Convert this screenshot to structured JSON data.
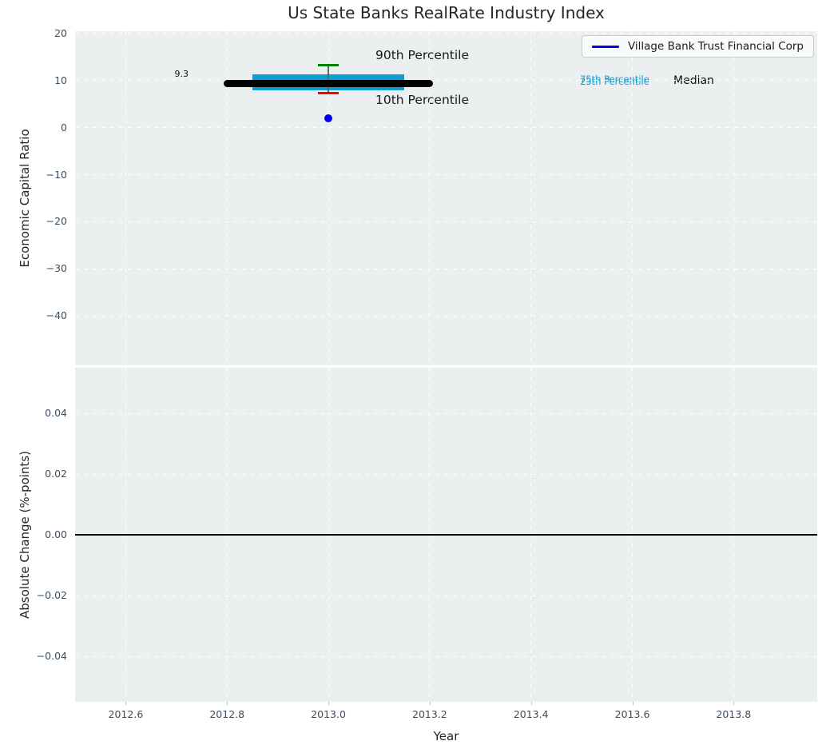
{
  "title": "Us State Banks RealRate Industry Index",
  "colors": {
    "plot_bg": "#eceff0",
    "grid": "#ffffff",
    "box_fill": "#0d9fd4",
    "median_line": "#000000",
    "p90_cap": "#008000",
    "p10_cap": "#ff0000",
    "whisker": "#666666",
    "company_point": "#0000ee",
    "legend_line": "#0000ee",
    "zero_line": "#000000",
    "tick_label": "#3b4d60",
    "text": "#262626",
    "percentile_text": "#17a1d7"
  },
  "legend": {
    "series_label": "Village Bank Trust Financial Corp"
  },
  "chart_data": [
    {
      "type": "box",
      "title": "Us State Banks RealRate Industry Index",
      "ylabel": "Economic Capital Ratio",
      "ylim": [
        -50.5,
        20.5
      ],
      "yticks": [
        20,
        10,
        0,
        -10,
        -20,
        -30,
        -40
      ],
      "yticklabels": [
        "20",
        "10",
        "0",
        "−10",
        "−20",
        "−30",
        "−40"
      ],
      "xlim": [
        2012.5,
        2013.965
      ],
      "grid": "white dashed, on",
      "legend_position": "upper right",
      "legend_entries": [
        "Village Bank Trust Financial Corp"
      ],
      "x_center": 2013.0,
      "box": {
        "p90": 13.2,
        "p75": 11.3,
        "median": 9.3,
        "p25": 8.0,
        "p10": 7.3,
        "company_value": 2.0,
        "box_halfwidth_years": 0.15,
        "median_halfwidth_years": 0.2,
        "cap_halfwidth_years": 0.02
      },
      "annotations": {
        "median_value": "9.3",
        "p90_label": "90th Percentile",
        "p10_label": "10th Percentile",
        "p75_label": "75th Percentile",
        "p25_label": "25th Percentile",
        "median_label": "Median"
      }
    },
    {
      "type": "line",
      "ylabel": "Absolute Change (%-points)",
      "xlabel": "Year",
      "ylim": [
        -0.055,
        0.055
      ],
      "yticks": [
        0.04,
        0.02,
        0.0,
        -0.02,
        -0.04
      ],
      "yticklabels": [
        "0.04",
        "0.02",
        "0.00",
        "−0.02",
        "−0.04"
      ],
      "xlim": [
        2012.5,
        2013.965
      ],
      "xticks": [
        2012.6,
        2012.8,
        2013.0,
        2013.2,
        2013.4,
        2013.6,
        2013.8
      ],
      "xticklabels": [
        "2012.6",
        "2012.8",
        "2013.0",
        "2013.2",
        "2013.4",
        "2013.6",
        "2013.8"
      ],
      "grid": "white dashed, on",
      "zero_line": 0.0,
      "series": []
    }
  ]
}
